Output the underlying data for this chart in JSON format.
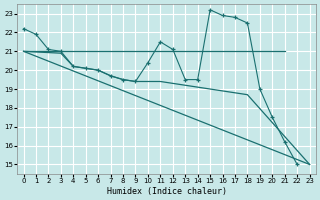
{
  "xlabel": "Humidex (Indice chaleur)",
  "bg_color": "#c8e8e8",
  "grid_color": "#ffffff",
  "line_color": "#1a7070",
  "xlim": [
    -0.5,
    23.5
  ],
  "ylim": [
    14.5,
    23.5
  ],
  "xticks": [
    0,
    1,
    2,
    3,
    4,
    5,
    6,
    7,
    8,
    9,
    10,
    11,
    12,
    13,
    14,
    15,
    16,
    17,
    18,
    19,
    20,
    21,
    22,
    23
  ],
  "yticks": [
    15,
    16,
    17,
    18,
    19,
    20,
    21,
    22,
    23
  ],
  "series": [
    {
      "x": [
        0,
        1,
        2,
        3,
        4,
        5,
        6,
        7,
        8,
        9,
        10,
        11,
        12,
        13,
        14,
        15,
        16,
        17,
        18,
        19,
        20,
        21,
        22
      ],
      "y": [
        22.2,
        21.9,
        21.1,
        21.0,
        20.2,
        20.1,
        20.0,
        19.7,
        19.5,
        19.4,
        20.4,
        21.5,
        21.1,
        19.5,
        19.5,
        23.2,
        22.9,
        22.8,
        22.5,
        19.0,
        17.5,
        16.2,
        15.0
      ],
      "marker": true
    },
    {
      "x": [
        0,
        21
      ],
      "y": [
        21.0,
        21.0
      ],
      "marker": false
    },
    {
      "x": [
        0,
        23
      ],
      "y": [
        21.0,
        15.0
      ],
      "marker": false
    },
    {
      "x": [
        0,
        3,
        4,
        5,
        6,
        7,
        8,
        9,
        10,
        11,
        12,
        13,
        14,
        15,
        16,
        17,
        18,
        23
      ],
      "y": [
        21.0,
        20.9,
        20.2,
        20.1,
        20.0,
        19.7,
        19.5,
        19.4,
        19.4,
        19.4,
        19.3,
        19.2,
        19.1,
        19.0,
        18.9,
        18.8,
        18.7,
        15.0
      ],
      "marker": false
    }
  ]
}
